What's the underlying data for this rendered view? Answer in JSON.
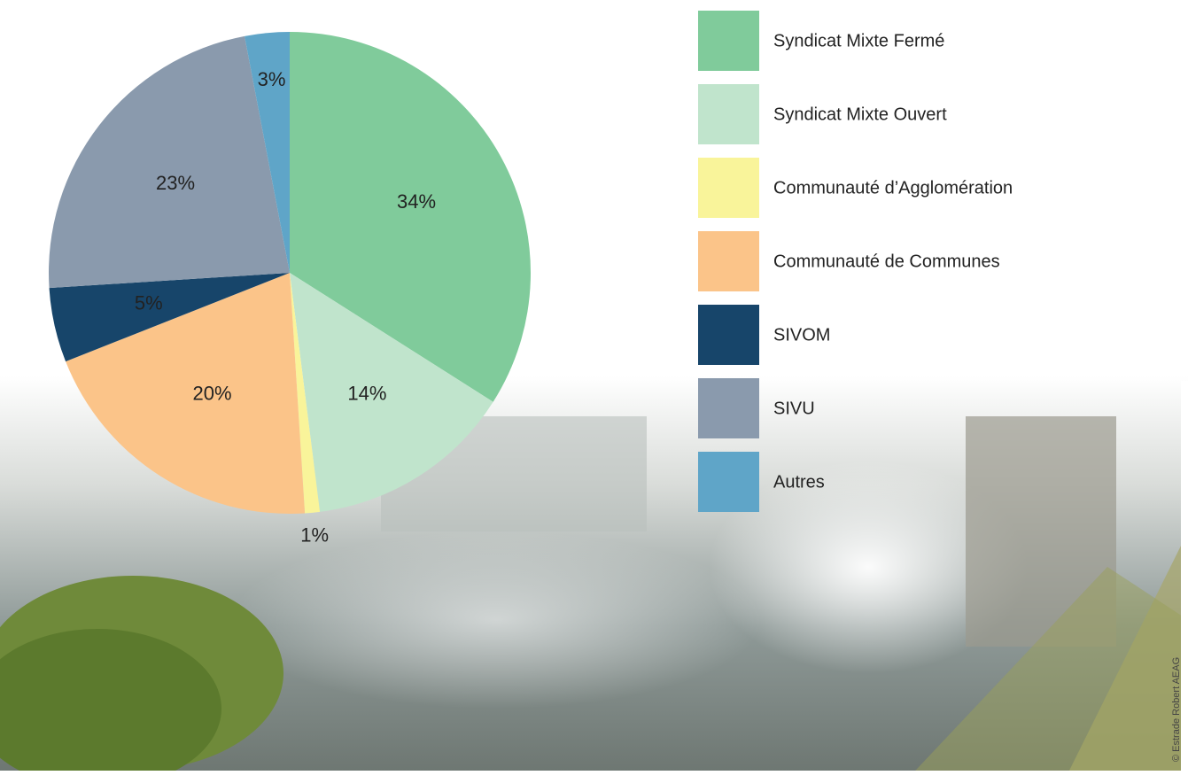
{
  "chart_data": {
    "type": "pie",
    "categories": [
      "Syndicat Mixte Fermé",
      "Syndicat Mixte Ouvert",
      "Communauté d’Agglomération",
      "Communauté de Communes",
      "SIVOM",
      "SIVU",
      "Autres"
    ],
    "values": [
      34,
      14,
      1,
      20,
      5,
      23,
      3
    ],
    "value_labels": [
      "34%",
      "14%",
      "1%",
      "20%",
      "5%",
      "23%",
      "3%"
    ],
    "colors": [
      "#80cb9b",
      "#c0e4cc",
      "#f9f49a",
      "#fbc489",
      "#17456a",
      "#8a9aad",
      "#5fa5c8"
    ],
    "legend": "right",
    "credit": "© Estrade Robert AEAG"
  }
}
